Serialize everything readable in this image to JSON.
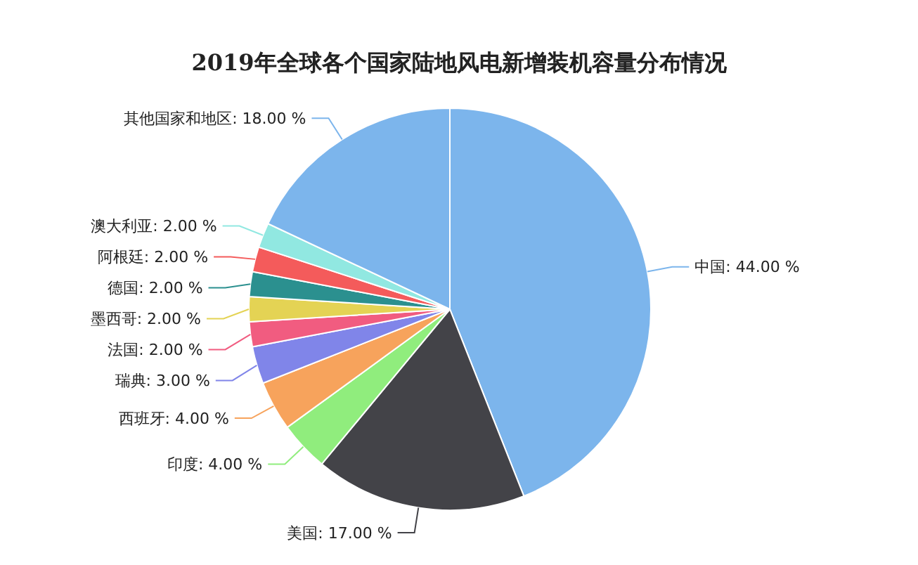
{
  "chart_data": {
    "type": "pie",
    "title": "2019年全球各个国家陆地风电新增装机容量分布情况",
    "categories": [
      "中国",
      "美国",
      "印度",
      "西班牙",
      "瑞典",
      "法国",
      "墨西哥",
      "德国",
      "阿根廷",
      "澳大利亚",
      "其他国家和地区"
    ],
    "values": [
      44,
      17,
      4,
      4,
      3,
      2,
      2,
      2,
      2,
      2,
      18
    ],
    "colors": [
      "#7cb5ec",
      "#434348",
      "#90ed7d",
      "#f7a35c",
      "#8085e9",
      "#f15c80",
      "#e4d354",
      "#2b908f",
      "#f45b5b",
      "#91e8e1",
      "#7cb5ec"
    ],
    "value_labels": [
      "44.00 %",
      "17.00 %",
      "4.00 %",
      "4.00 %",
      "3.00 %",
      "2.00 %",
      "2.00 %",
      "2.00 %",
      "2.00 %",
      "2.00 %",
      "18.00 %"
    ]
  }
}
